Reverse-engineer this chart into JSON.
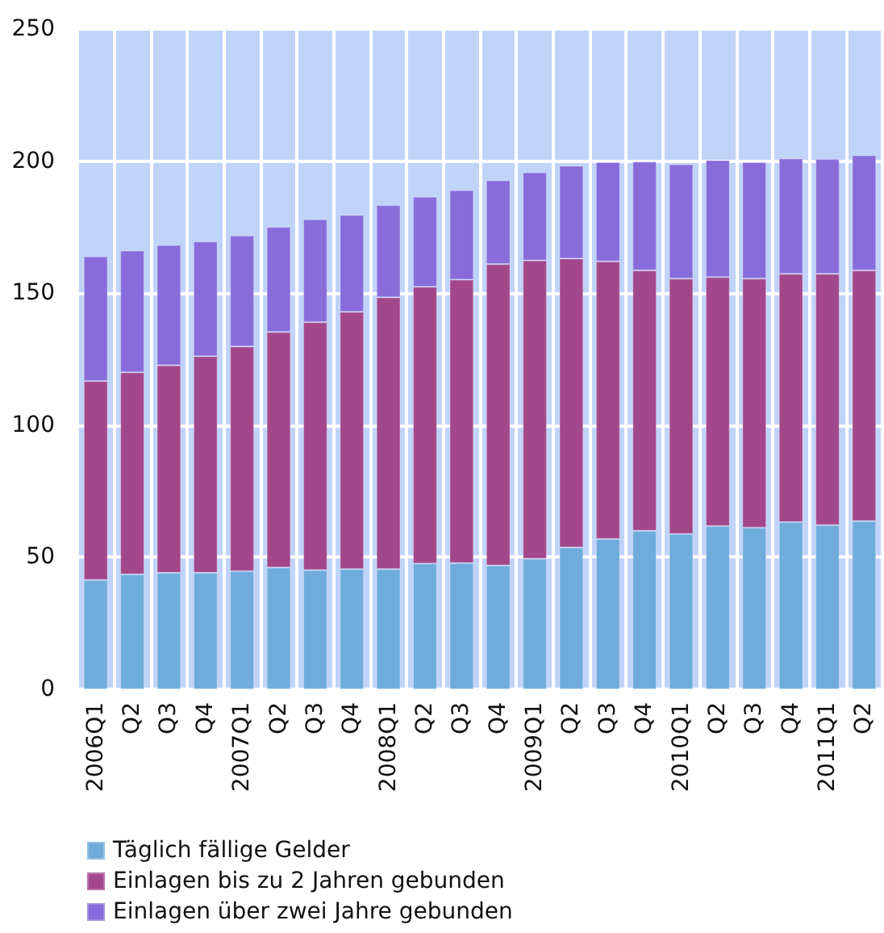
{
  "chart_data": {
    "type": "bar",
    "stacked": true,
    "grid": true,
    "legend": "bottom left",
    "categories": [
      "2006Q1",
      "Q2",
      "Q3",
      "Q4",
      "2007Q1",
      "Q2",
      "Q3",
      "Q4",
      "2008Q1",
      "Q2",
      "Q3",
      "Q4",
      "2009Q1",
      "Q2",
      "Q3",
      "Q4",
      "2010Q1",
      "Q2",
      "Q3",
      "Q4",
      "2011Q1",
      "Q2"
    ],
    "ylim": [
      0,
      250
    ],
    "yticks": [
      0,
      50,
      100,
      150,
      200,
      250
    ],
    "series": [
      {
        "name": "Täglich fällige Gelder",
        "color": "#70acdb",
        "values": [
          41.4,
          43.5,
          44.1,
          44.1,
          44.7,
          46.1,
          45.1,
          45.5,
          45.5,
          47.6,
          47.8,
          46.9,
          49.4,
          53.7,
          56.9,
          60.0,
          58.8,
          61.8,
          61.2,
          63.3,
          62.2,
          63.7
        ]
      },
      {
        "name": "Einlagen bis zu 2 Jahren gebunden",
        "color": "#a3478b",
        "values": [
          75.3,
          76.5,
          78.6,
          82.0,
          85.1,
          89.2,
          93.9,
          97.4,
          102.9,
          104.8,
          107.3,
          114.1,
          113.0,
          109.4,
          105.1,
          98.6,
          96.7,
          94.3,
          94.3,
          94.0,
          95.1,
          94.9
        ]
      },
      {
        "name": "Einlagen über zwei Jahre gebunden",
        "color": "#886cda",
        "values": [
          47.2,
          46.1,
          45.5,
          43.5,
          42.0,
          39.8,
          39.0,
          36.7,
          34.9,
          34.1,
          33.9,
          31.7,
          33.3,
          35.1,
          37.6,
          41.2,
          43.3,
          44.3,
          44.1,
          43.7,
          43.5,
          43.6
        ]
      }
    ]
  }
}
